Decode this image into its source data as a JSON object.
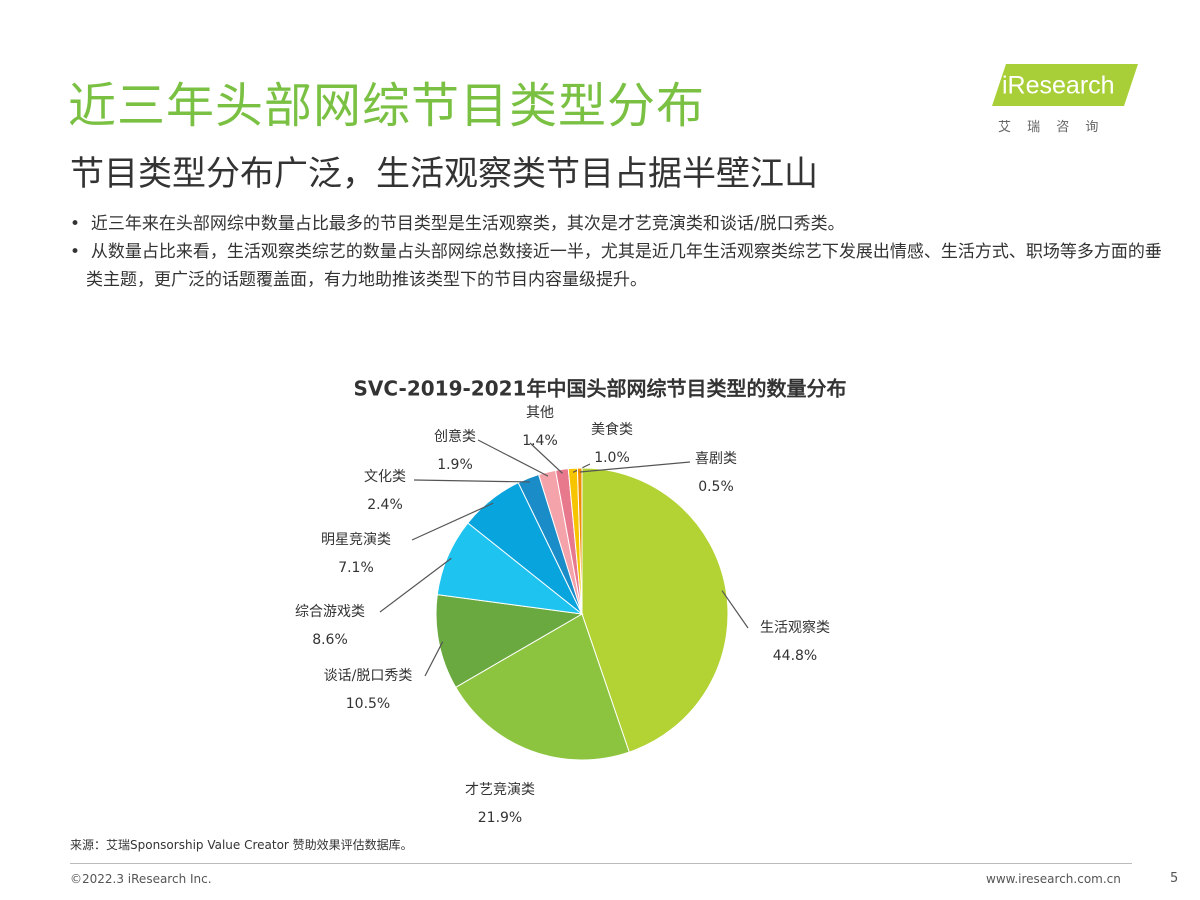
{
  "header": {
    "title": "近三年头部网综节目类型分布",
    "subtitle": "节目类型分布广泛，生活观察类节目占据半壁江山"
  },
  "logo": {
    "brand": "iResearch",
    "tagline": "艾 瑞 咨 询"
  },
  "bullets": [
    "近三年来在头部网综中数量占比最多的节目类型是生活观察类，其次是才艺竞演类和谈话/脱口秀类。",
    "从数量占比来看，生活观察类综艺的数量占头部网综总数接近一半，尤其是近几年生活观察类综艺下发展出情感、生活方式、职场等多方面的垂类主题，更广泛的话题覆盖面，有力地助推该类型下的节目内容量级提升。"
  ],
  "chart_data": {
    "type": "pie",
    "title": "SVC-2019-2021年中国头部网综节目类型的数量分布",
    "categories": [
      "生活观察类",
      "才艺竞演类",
      "谈话/脱口秀类",
      "综合游戏类",
      "明星竞演类",
      "文化类",
      "创意类",
      "其他",
      "美食类",
      "喜剧类"
    ],
    "values": [
      44.8,
      21.9,
      10.5,
      8.6,
      7.1,
      2.4,
      1.9,
      1.4,
      1.0,
      0.5
    ],
    "value_labels": [
      "44.8%",
      "21.9%",
      "10.5%",
      "8.6%",
      "7.1%",
      "2.4%",
      "1.9%",
      "1.4%",
      "1.0%",
      "0.5%"
    ],
    "colors": [
      "#b3d234",
      "#8cc43f",
      "#6aa93f",
      "#1ec3ef",
      "#08a4de",
      "#1a8cc8",
      "#f4a3aa",
      "#e8788c",
      "#f7c400",
      "#f08c00"
    ]
  },
  "source": "来源：艾瑞Sponsorship Value Creator 赞助效果评估数据库。",
  "footer": {
    "copyright": "©2022.3 iResearch Inc.",
    "website": "www.iresearch.com.cn",
    "page": "5"
  }
}
